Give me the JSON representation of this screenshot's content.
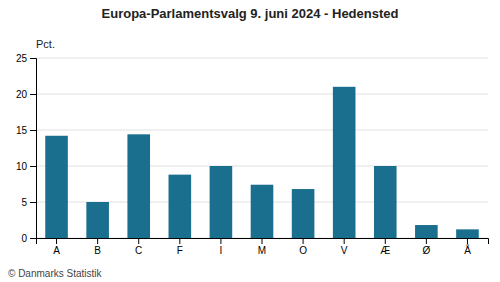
{
  "chart_data": {
    "type": "bar",
    "title": "Europa-Parlamentsvalg 9. juni 2024 - Hedensted",
    "categories": [
      "A",
      "B",
      "C",
      "F",
      "I",
      "M",
      "O",
      "V",
      "Æ",
      "Ø",
      "Å"
    ],
    "values": [
      14.2,
      5.0,
      14.4,
      8.8,
      10.0,
      7.4,
      6.8,
      21.0,
      10.0,
      1.8,
      1.2
    ],
    "color": "#1a6e8e",
    "ylabel": "Pct.",
    "footer": "© Danmarks Statistik",
    "ylim": [
      0,
      25
    ],
    "yticks": [
      0,
      5,
      10,
      15,
      20,
      25
    ],
    "grid": true
  }
}
